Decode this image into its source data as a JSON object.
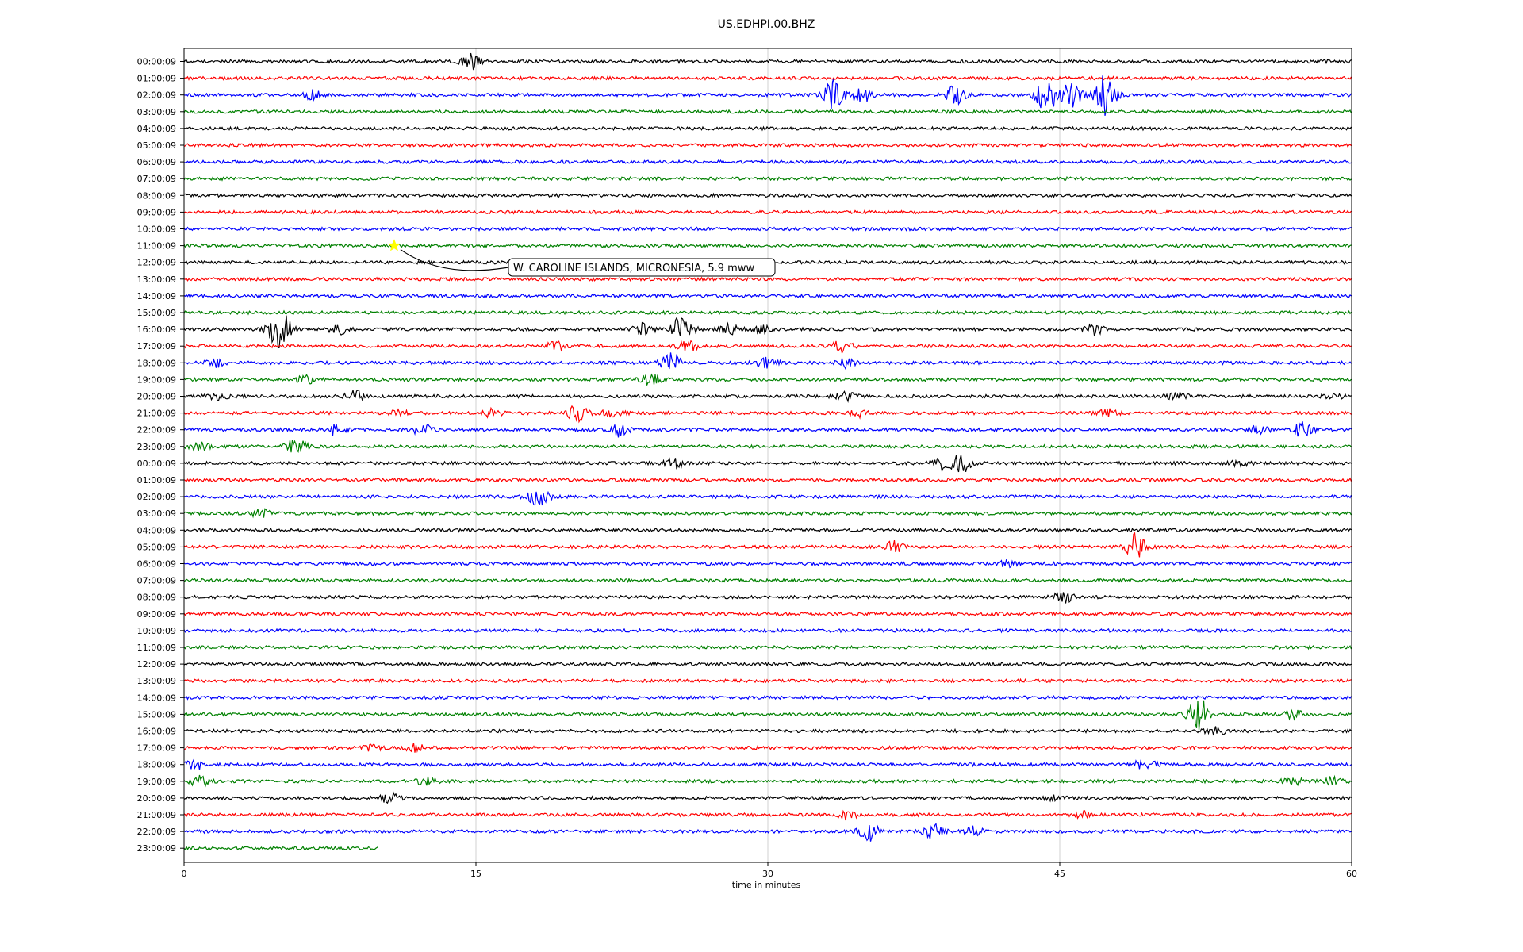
{
  "chart_data": {
    "type": "line",
    "title": "US.EDHPI.00.BHZ",
    "xlabel": "time in minutes",
    "ylabel": "",
    "xlim": [
      0,
      60
    ],
    "x_ticks": [
      "0",
      "15",
      "30",
      "45",
      "60"
    ],
    "x_tick_values": [
      0,
      15,
      30,
      45,
      60
    ],
    "grid": "vertical lines at each major x tick",
    "row_colors": [
      "#000000",
      "#ff0000",
      "#0000ff",
      "#008000"
    ],
    "row_labels": [
      "00:00:09",
      "01:00:09",
      "02:00:09",
      "03:00:09",
      "04:00:09",
      "05:00:09",
      "06:00:09",
      "07:00:09",
      "08:00:09",
      "09:00:09",
      "10:00:09",
      "11:00:09",
      "12:00:09",
      "13:00:09",
      "14:00:09",
      "15:00:09",
      "16:00:09",
      "17:00:09",
      "18:00:09",
      "19:00:09",
      "20:00:09",
      "21:00:09",
      "22:00:09",
      "23:00:09",
      "00:00:09",
      "01:00:09",
      "02:00:09",
      "03:00:09",
      "04:00:09",
      "05:00:09",
      "06:00:09",
      "07:00:09",
      "08:00:09",
      "09:00:09",
      "10:00:09",
      "11:00:09",
      "12:00:09",
      "13:00:09",
      "14:00:09",
      "15:00:09",
      "16:00:09",
      "17:00:09",
      "18:00:09",
      "19:00:09",
      "20:00:09",
      "21:00:09",
      "22:00:09",
      "23:00:09"
    ],
    "last_row_end_minute": 10,
    "events": [
      {
        "row": 0,
        "minute": 14.8,
        "amp": 0.8
      },
      {
        "row": 2,
        "minute": 6.7,
        "amp": 0.5
      },
      {
        "row": 2,
        "minute": 33.4,
        "amp": 1.6
      },
      {
        "row": 2,
        "minute": 34.8,
        "amp": 0.8
      },
      {
        "row": 2,
        "minute": 39.6,
        "amp": 1.0
      },
      {
        "row": 2,
        "minute": 44.3,
        "amp": 1.8
      },
      {
        "row": 2,
        "minute": 45.6,
        "amp": 1.3
      },
      {
        "row": 2,
        "minute": 47.4,
        "amp": 2.6
      },
      {
        "row": 16,
        "minute": 4.9,
        "amp": 2.3
      },
      {
        "row": 16,
        "minute": 8.0,
        "amp": 0.5
      },
      {
        "row": 16,
        "minute": 23.6,
        "amp": 0.6
      },
      {
        "row": 16,
        "minute": 25.6,
        "amp": 1.6
      },
      {
        "row": 16,
        "minute": 28.0,
        "amp": 0.5
      },
      {
        "row": 16,
        "minute": 29.6,
        "amp": 0.4
      },
      {
        "row": 16,
        "minute": 46.8,
        "amp": 0.5
      },
      {
        "row": 17,
        "minute": 19.1,
        "amp": 0.4
      },
      {
        "row": 17,
        "minute": 25.9,
        "amp": 0.6
      },
      {
        "row": 17,
        "minute": 33.8,
        "amp": 0.6
      },
      {
        "row": 18,
        "minute": 1.7,
        "amp": 0.5
      },
      {
        "row": 18,
        "minute": 25.0,
        "amp": 1.0
      },
      {
        "row": 18,
        "minute": 30.0,
        "amp": 0.5
      },
      {
        "row": 18,
        "minute": 34.0,
        "amp": 0.5
      },
      {
        "row": 19,
        "minute": 6.3,
        "amp": 0.4
      },
      {
        "row": 19,
        "minute": 24.0,
        "amp": 0.6
      },
      {
        "row": 20,
        "minute": 1.8,
        "amp": 0.4
      },
      {
        "row": 20,
        "minute": 8.8,
        "amp": 0.6
      },
      {
        "row": 20,
        "minute": 34.0,
        "amp": 0.4
      },
      {
        "row": 20,
        "minute": 51.0,
        "amp": 0.4
      },
      {
        "row": 20,
        "minute": 59.0,
        "amp": 0.3
      },
      {
        "row": 21,
        "minute": 11.0,
        "amp": 0.3
      },
      {
        "row": 21,
        "minute": 15.8,
        "amp": 0.4
      },
      {
        "row": 21,
        "minute": 20.2,
        "amp": 0.8
      },
      {
        "row": 21,
        "minute": 22.0,
        "amp": 0.4
      },
      {
        "row": 21,
        "minute": 34.6,
        "amp": 0.4
      },
      {
        "row": 21,
        "minute": 47.5,
        "amp": 0.4
      },
      {
        "row": 22,
        "minute": 7.7,
        "amp": 0.5
      },
      {
        "row": 22,
        "minute": 12.3,
        "amp": 0.6
      },
      {
        "row": 22,
        "minute": 22.3,
        "amp": 0.7
      },
      {
        "row": 22,
        "minute": 55.2,
        "amp": 0.4
      },
      {
        "row": 22,
        "minute": 57.5,
        "amp": 0.8
      },
      {
        "row": 23,
        "minute": 0.8,
        "amp": 0.4
      },
      {
        "row": 23,
        "minute": 5.8,
        "amp": 0.9
      },
      {
        "row": 24,
        "minute": 25.2,
        "amp": 0.5
      },
      {
        "row": 24,
        "minute": 38.9,
        "amp": 0.7
      },
      {
        "row": 24,
        "minute": 40.0,
        "amp": 1.0
      },
      {
        "row": 24,
        "minute": 54.3,
        "amp": 0.3
      },
      {
        "row": 26,
        "minute": 18.2,
        "amp": 1.0
      },
      {
        "row": 27,
        "minute": 4.0,
        "amp": 0.4
      },
      {
        "row": 29,
        "minute": 36.5,
        "amp": 0.6
      },
      {
        "row": 29,
        "minute": 49.0,
        "amp": 1.7
      },
      {
        "row": 30,
        "minute": 42.3,
        "amp": 0.3
      },
      {
        "row": 32,
        "minute": 45.2,
        "amp": 0.6
      },
      {
        "row": 39,
        "minute": 52.1,
        "amp": 2.0
      },
      {
        "row": 39,
        "minute": 57.0,
        "amp": 0.4
      },
      {
        "row": 40,
        "minute": 53.0,
        "amp": 0.4
      },
      {
        "row": 41,
        "minute": 9.7,
        "amp": 0.3
      },
      {
        "row": 41,
        "minute": 11.9,
        "amp": 0.4
      },
      {
        "row": 42,
        "minute": 0.6,
        "amp": 0.5
      },
      {
        "row": 42,
        "minute": 49.4,
        "amp": 0.7
      },
      {
        "row": 43,
        "minute": 0.8,
        "amp": 0.5
      },
      {
        "row": 43,
        "minute": 12.5,
        "amp": 0.4
      },
      {
        "row": 43,
        "minute": 57.0,
        "amp": 0.4
      },
      {
        "row": 43,
        "minute": 59.0,
        "amp": 0.4
      },
      {
        "row": 44,
        "minute": 10.6,
        "amp": 0.5
      },
      {
        "row": 44,
        "minute": 44.7,
        "amp": 0.3
      },
      {
        "row": 45,
        "minute": 34.0,
        "amp": 0.5
      },
      {
        "row": 45,
        "minute": 46.2,
        "amp": 0.3
      },
      {
        "row": 46,
        "minute": 35.2,
        "amp": 1.0
      },
      {
        "row": 46,
        "minute": 38.5,
        "amp": 0.8
      },
      {
        "row": 46,
        "minute": 40.5,
        "amp": 0.5
      }
    ],
    "annotations": [
      {
        "text": "W. CAROLINE ISLANDS, MICRONESIA, 5.9 mww",
        "marker": "star",
        "marker_color": "#ffff00",
        "row": 11,
        "minute": 10.8
      }
    ]
  }
}
